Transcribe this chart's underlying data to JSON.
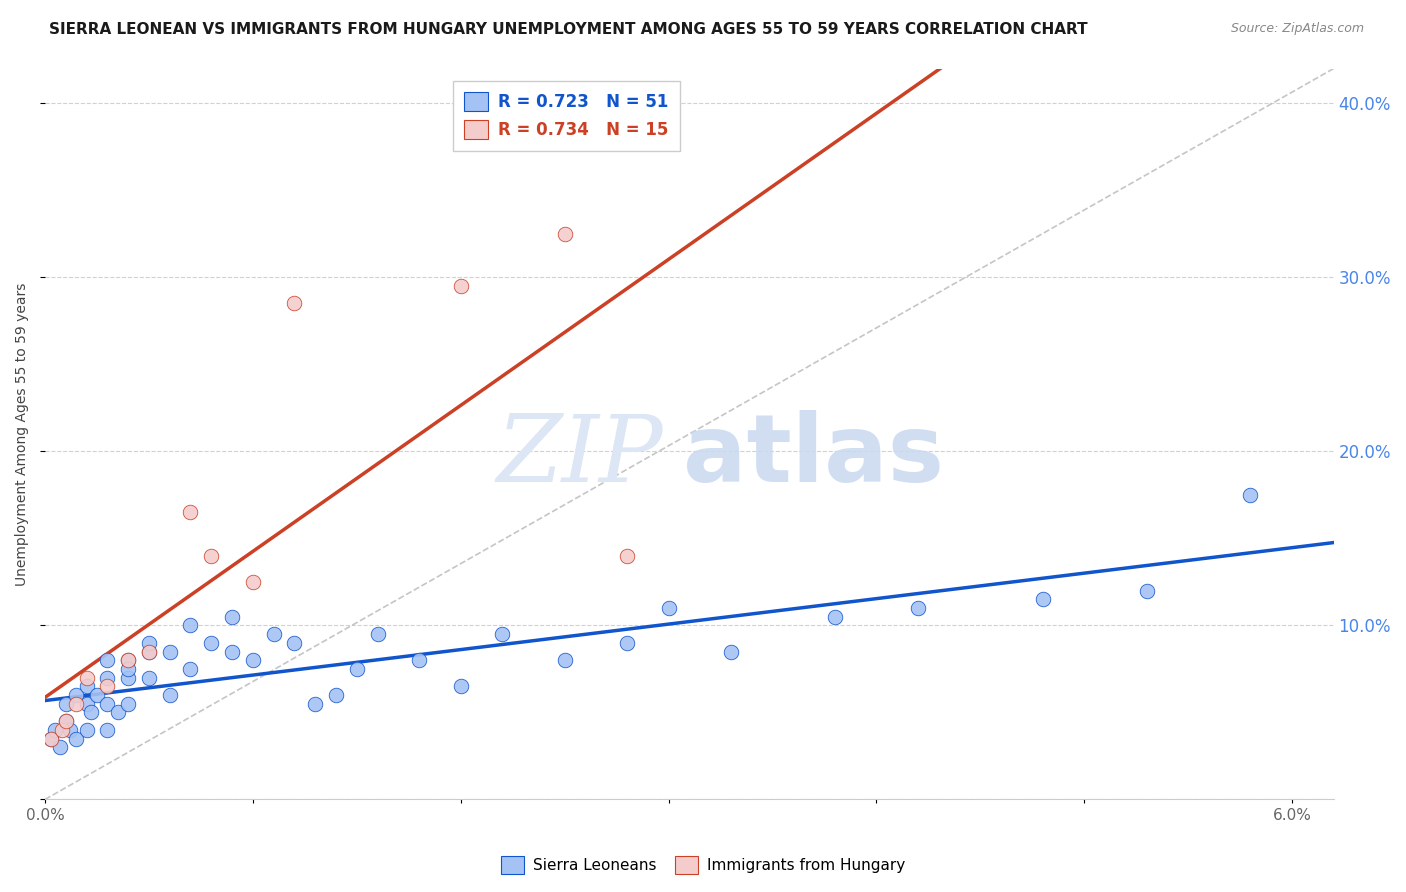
{
  "title": "SIERRA LEONEAN VS IMMIGRANTS FROM HUNGARY UNEMPLOYMENT AMONG AGES 55 TO 59 YEARS CORRELATION CHART",
  "source": "Source: ZipAtlas.com",
  "ylabel": "Unemployment Among Ages 55 to 59 years",
  "xlim": [
    0.0,
    0.062
  ],
  "ylim": [
    0.0,
    0.42
  ],
  "blue_R": "0.723",
  "blue_N": "51",
  "pink_R": "0.734",
  "pink_N": "15",
  "sierra_x": [
    0.0003,
    0.0005,
    0.0007,
    0.001,
    0.001,
    0.0012,
    0.0015,
    0.0015,
    0.002,
    0.002,
    0.002,
    0.0022,
    0.0025,
    0.003,
    0.003,
    0.003,
    0.003,
    0.0035,
    0.004,
    0.004,
    0.004,
    0.004,
    0.005,
    0.005,
    0.005,
    0.006,
    0.006,
    0.007,
    0.007,
    0.008,
    0.009,
    0.009,
    0.01,
    0.011,
    0.012,
    0.013,
    0.014,
    0.015,
    0.016,
    0.018,
    0.02,
    0.022,
    0.025,
    0.028,
    0.03,
    0.033,
    0.038,
    0.042,
    0.048,
    0.053,
    0.058
  ],
  "sierra_y": [
    0.035,
    0.04,
    0.03,
    0.045,
    0.055,
    0.04,
    0.035,
    0.06,
    0.04,
    0.055,
    0.065,
    0.05,
    0.06,
    0.04,
    0.055,
    0.07,
    0.08,
    0.05,
    0.055,
    0.07,
    0.08,
    0.075,
    0.07,
    0.085,
    0.09,
    0.06,
    0.085,
    0.075,
    0.1,
    0.09,
    0.085,
    0.105,
    0.08,
    0.095,
    0.09,
    0.055,
    0.06,
    0.075,
    0.095,
    0.08,
    0.065,
    0.095,
    0.08,
    0.09,
    0.11,
    0.085,
    0.105,
    0.11,
    0.115,
    0.12,
    0.175
  ],
  "hungary_x": [
    0.0003,
    0.0008,
    0.001,
    0.0015,
    0.002,
    0.003,
    0.004,
    0.005,
    0.007,
    0.008,
    0.01,
    0.012,
    0.02,
    0.025,
    0.028
  ],
  "hungary_y": [
    0.035,
    0.04,
    0.045,
    0.055,
    0.07,
    0.065,
    0.08,
    0.085,
    0.165,
    0.14,
    0.125,
    0.285,
    0.295,
    0.325,
    0.14
  ],
  "blue_color": "#a4c2f4",
  "pink_color": "#f4cccc",
  "blue_line_color": "#1155cc",
  "pink_line_color": "#cc4125",
  "trend_line_color": "#b7b7b7",
  "grid_color": "#cccccc",
  "background_color": "#ffffff",
  "right_axis_color": "#4a86e8",
  "title_fontsize": 11,
  "source_fontsize": 9,
  "axis_label_fontsize": 10,
  "tick_fontsize": 11
}
